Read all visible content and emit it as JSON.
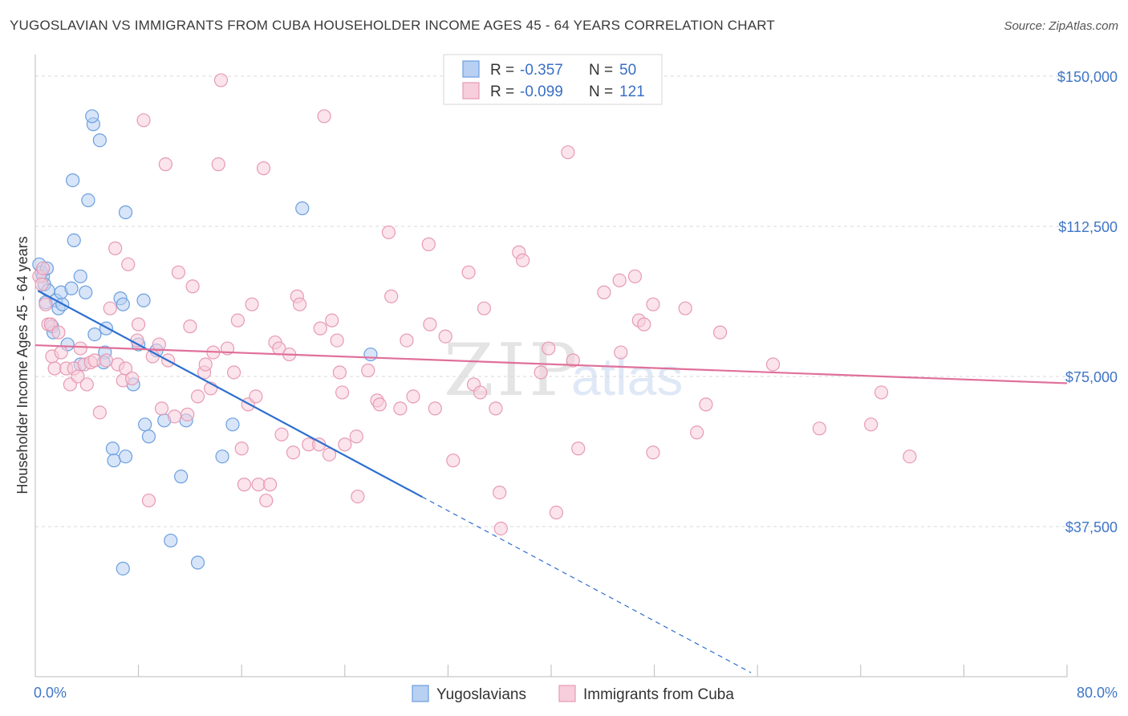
{
  "title": "YUGOSLAVIAN VS IMMIGRANTS FROM CUBA HOUSEHOLDER INCOME AGES 45 - 64 YEARS CORRELATION CHART",
  "source": "Source: ZipAtlas.com",
  "watermark": {
    "part1": "ZIP",
    "part2": "atlas"
  },
  "colors": {
    "blue": "#6b9fe0",
    "blue_fill": "#b8d0f2",
    "blue_line": "#2d6fcf",
    "pink": "#e79ab4",
    "pink_fill": "#f7cedb",
    "pink_line": "#e0709a",
    "tick_text": "#3f76c8"
  },
  "legend": {
    "r_label": "R =",
    "n_label": "N =",
    "rows": [
      {
        "r": "-0.357",
        "n": "50"
      },
      {
        "r": "-0.099",
        "n": "121"
      }
    ]
  },
  "chart_data": {
    "type": "scatter",
    "xlabel": "",
    "ylabel": "Householder Income Ages 45 - 64 years",
    "xlim": [
      0,
      80
    ],
    "ylim": [
      0,
      155000
    ],
    "x_tick_labels": [
      "0.0%",
      "80.0%"
    ],
    "y_ticks": [
      {
        "value": 37500,
        "label": "$37,500"
      },
      {
        "value": 75000,
        "label": "$75,000"
      },
      {
        "value": 112500,
        "label": "$112,500"
      },
      {
        "value": 150000,
        "label": "$150,000"
      }
    ],
    "series": [
      {
        "name": "Yugoslavians",
        "r": -0.357,
        "n": 50,
        "trend": {
          "x0": 0.2,
          "y0": 96400,
          "x1": 30.0,
          "y1": 44900,
          "dash_to_x": 55.5,
          "dash_to_y": 1000
        },
        "points": [
          [
            0.3,
            103000
          ],
          [
            0.5,
            101000
          ],
          [
            0.6,
            100000
          ],
          [
            0.7,
            98000
          ],
          [
            0.9,
            102000
          ],
          [
            1.0,
            96500
          ],
          [
            0.8,
            93500
          ],
          [
            1.3,
            87500
          ],
          [
            1.4,
            86000
          ],
          [
            1.6,
            94000
          ],
          [
            1.8,
            92000
          ],
          [
            2.1,
            93000
          ],
          [
            2.0,
            96000
          ],
          [
            2.5,
            83000
          ],
          [
            2.8,
            97000
          ],
          [
            3.0,
            109000
          ],
          [
            3.5,
            78000
          ],
          [
            3.5,
            100000
          ],
          [
            3.9,
            96000
          ],
          [
            4.1,
            119000
          ],
          [
            4.6,
            85500
          ],
          [
            4.5,
            138000
          ],
          [
            4.4,
            140000
          ],
          [
            2.9,
            124000
          ],
          [
            5.0,
            134000
          ],
          [
            5.4,
            81000
          ],
          [
            5.3,
            78500
          ],
          [
            5.5,
            87000
          ],
          [
            6.0,
            57000
          ],
          [
            6.1,
            54000
          ],
          [
            6.6,
            94500
          ],
          [
            6.8,
            93000
          ],
          [
            7.0,
            55000
          ],
          [
            7.6,
            73000
          ],
          [
            8.0,
            83000
          ],
          [
            8.5,
            63000
          ],
          [
            8.8,
            60000
          ],
          [
            8.4,
            94000
          ],
          [
            9.4,
            81500
          ],
          [
            10.0,
            64000
          ],
          [
            11.7,
            64000
          ],
          [
            11.3,
            50000
          ],
          [
            14.5,
            55000
          ],
          [
            15.3,
            63000
          ],
          [
            7.0,
            116000
          ],
          [
            20.7,
            117000
          ],
          [
            26.0,
            80500
          ],
          [
            10.5,
            34000
          ],
          [
            6.8,
            27000
          ],
          [
            12.6,
            28500
          ]
        ]
      },
      {
        "name": "Immigrants from Cuba",
        "r": -0.099,
        "n": 121,
        "trend": {
          "x0": 0.0,
          "y0": 82800,
          "x1": 80.0,
          "y1": 73300
        },
        "points": [
          [
            0.3,
            100000
          ],
          [
            0.5,
            98000
          ],
          [
            0.6,
            102000
          ],
          [
            0.8,
            93000
          ],
          [
            1.0,
            88000
          ],
          [
            1.2,
            88000
          ],
          [
            1.3,
            80000
          ],
          [
            1.5,
            77000
          ],
          [
            1.8,
            86000
          ],
          [
            2.0,
            81000
          ],
          [
            2.4,
            77000
          ],
          [
            2.7,
            73000
          ],
          [
            3.0,
            77000
          ],
          [
            3.3,
            75000
          ],
          [
            3.5,
            82000
          ],
          [
            3.8,
            78000
          ],
          [
            4.0,
            73000
          ],
          [
            4.3,
            78500
          ],
          [
            4.6,
            79000
          ],
          [
            5.0,
            66000
          ],
          [
            5.5,
            79000
          ],
          [
            5.8,
            92000
          ],
          [
            6.2,
            107000
          ],
          [
            6.4,
            78000
          ],
          [
            6.8,
            74000
          ],
          [
            7.0,
            77000
          ],
          [
            7.2,
            103000
          ],
          [
            7.5,
            74500
          ],
          [
            7.9,
            84000
          ],
          [
            8.0,
            88000
          ],
          [
            8.4,
            139000
          ],
          [
            8.8,
            44000
          ],
          [
            9.1,
            80000
          ],
          [
            9.6,
            83000
          ],
          [
            9.8,
            67000
          ],
          [
            10.1,
            128000
          ],
          [
            10.3,
            79000
          ],
          [
            10.8,
            65000
          ],
          [
            11.1,
            101000
          ],
          [
            11.8,
            65500
          ],
          [
            12.0,
            87500
          ],
          [
            12.2,
            97500
          ],
          [
            12.6,
            70000
          ],
          [
            13.1,
            76000
          ],
          [
            13.2,
            78000
          ],
          [
            13.6,
            72000
          ],
          [
            13.8,
            81000
          ],
          [
            14.2,
            128000
          ],
          [
            14.4,
            149000
          ],
          [
            14.9,
            82000
          ],
          [
            15.4,
            76000
          ],
          [
            15.7,
            89000
          ],
          [
            16.0,
            57000
          ],
          [
            16.2,
            48000
          ],
          [
            16.5,
            68000
          ],
          [
            16.8,
            93000
          ],
          [
            17.1,
            70000
          ],
          [
            17.3,
            48000
          ],
          [
            17.7,
            127000
          ],
          [
            17.9,
            44000
          ],
          [
            18.2,
            48000
          ],
          [
            18.6,
            83500
          ],
          [
            18.9,
            82000
          ],
          [
            19.1,
            60500
          ],
          [
            19.7,
            80500
          ],
          [
            20.0,
            56000
          ],
          [
            20.3,
            95000
          ],
          [
            20.5,
            93000
          ],
          [
            21.2,
            58000
          ],
          [
            22.0,
            58000
          ],
          [
            22.1,
            87000
          ],
          [
            22.4,
            140000
          ],
          [
            22.8,
            55500
          ],
          [
            23.0,
            89000
          ],
          [
            23.4,
            84000
          ],
          [
            23.6,
            76000
          ],
          [
            23.8,
            71000
          ],
          [
            24.0,
            58000
          ],
          [
            24.9,
            60000
          ],
          [
            25.0,
            45000
          ],
          [
            25.8,
            76500
          ],
          [
            26.5,
            69000
          ],
          [
            27.4,
            111000
          ],
          [
            27.6,
            95000
          ],
          [
            28.3,
            67000
          ],
          [
            28.8,
            84000
          ],
          [
            29.3,
            70000
          ],
          [
            30.5,
            108000
          ],
          [
            30.6,
            88000
          ],
          [
            31.0,
            67000
          ],
          [
            31.8,
            85000
          ],
          [
            32.4,
            54000
          ],
          [
            33.6,
            101000
          ],
          [
            34.0,
            73000
          ],
          [
            34.5,
            71000
          ],
          [
            34.8,
            92000
          ],
          [
            35.7,
            67000
          ],
          [
            36.0,
            46000
          ],
          [
            36.1,
            37000
          ],
          [
            37.5,
            106000
          ],
          [
            37.8,
            104000
          ],
          [
            39.2,
            76000
          ],
          [
            39.8,
            82000
          ],
          [
            41.3,
            131000
          ],
          [
            41.7,
            79000
          ],
          [
            42.1,
            57000
          ],
          [
            44.1,
            96000
          ],
          [
            45.3,
            99000
          ],
          [
            45.4,
            81000
          ],
          [
            46.5,
            100000
          ],
          [
            46.8,
            89000
          ],
          [
            47.2,
            88000
          ],
          [
            47.9,
            93000
          ],
          [
            47.9,
            56000
          ],
          [
            50.4,
            92000
          ],
          [
            51.3,
            61000
          ],
          [
            52.0,
            68000
          ],
          [
            53.1,
            86000
          ],
          [
            57.2,
            78000
          ],
          [
            60.8,
            62000
          ],
          [
            64.8,
            63000
          ],
          [
            65.6,
            71000
          ],
          [
            67.8,
            55000
          ],
          [
            40.4,
            41000
          ],
          [
            26.7,
            68000
          ]
        ]
      }
    ]
  },
  "bottom_legend": [
    "Yugoslavians",
    "Immigrants from Cuba"
  ]
}
